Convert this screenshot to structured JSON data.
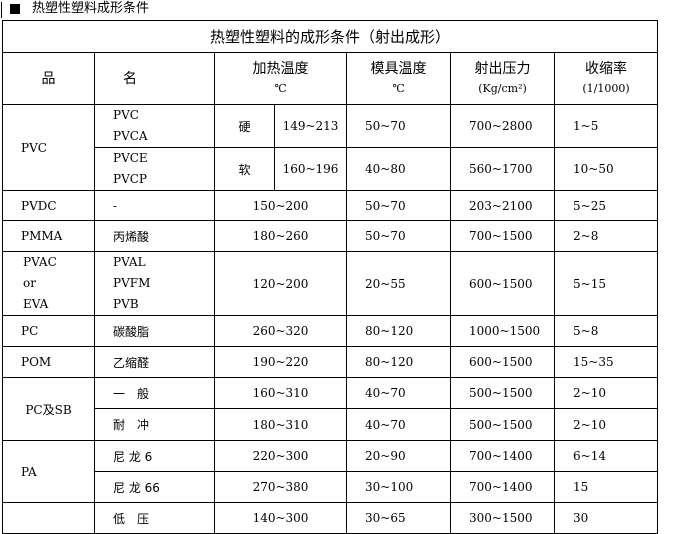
{
  "heading": "热塑性塑料成形条件",
  "table": {
    "caption": "热塑性塑料的成形条件（射出成形）",
    "headers": {
      "name_a": "品",
      "name_b": "名",
      "heat": "加热温度",
      "heat_unit": "℃",
      "mold": "模具温度",
      "mold_unit": "℃",
      "pressure": "射出压力",
      "pressure_unit": "(Kg/cm²)",
      "shrink": "收缩率",
      "shrink_unit": "(1/1000)"
    },
    "pvc": {
      "group": "PVC",
      "sub1": [
        "PVC",
        "PVCA"
      ],
      "sub1_type": "硬",
      "sub1_heat": "149~213",
      "sub1_mold": "50~70",
      "sub1_pressure": "700~2800",
      "sub1_shrink": "1~5",
      "sub2": [
        "PVCE",
        "PVCP"
      ],
      "sub2_type": "软",
      "sub2_heat": "160~196",
      "sub2_mold": "40~80",
      "sub2_pressure": "560~1700",
      "sub2_shrink": "10~50"
    },
    "rows": [
      {
        "group": "PVDC",
        "name": "-",
        "heat": "150~200",
        "mold": "50~70",
        "pressure": "203~2100",
        "shrink": "5~25"
      },
      {
        "group": "PMMA",
        "name": "丙烯酸",
        "heat": "180~260",
        "mold": "50~70",
        "pressure": "700~1500",
        "shrink": "2~8"
      },
      {
        "group_lines": [
          "PVAC",
          "or",
          "EVA"
        ],
        "name_lines": [
          "PVAL",
          "PVFM",
          "PVB"
        ],
        "heat": "120~200",
        "mold": "20~55",
        "pressure": "600~1500",
        "shrink": "5~15"
      },
      {
        "group": "PC",
        "name": "碳酸脂",
        "heat": "260~320",
        "mold": "80~120",
        "pressure": "1000~1500",
        "shrink": "5~8"
      },
      {
        "group": "POM",
        "name": "乙缩醛",
        "heat": "190~220",
        "mold": "80~120",
        "pressure": "600~1500",
        "shrink": "15~35"
      }
    ],
    "pcsb": {
      "group": "PC及SB",
      "rows": [
        {
          "name": "一　般",
          "heat": "160~310",
          "mold": "40~70",
          "pressure": "500~1500",
          "shrink": "2~10"
        },
        {
          "name": "耐　冲",
          "heat": "180~310",
          "mold": "40~70",
          "pressure": "500~1500",
          "shrink": "2~10"
        }
      ]
    },
    "pa": {
      "group": "PA",
      "rows": [
        {
          "name": "尼 龙 6",
          "heat": "220~300",
          "mold": "20~90",
          "pressure": "700~1400",
          "shrink": "6~14"
        },
        {
          "name": "尼 龙 66",
          "heat": "270~380",
          "mold": "30~100",
          "pressure": "700~1400",
          "shrink": "15"
        }
      ]
    },
    "last": {
      "name": "低　压",
      "heat": "140~300",
      "mold": "30~65",
      "pressure": "300~1500",
      "shrink": "30"
    }
  }
}
